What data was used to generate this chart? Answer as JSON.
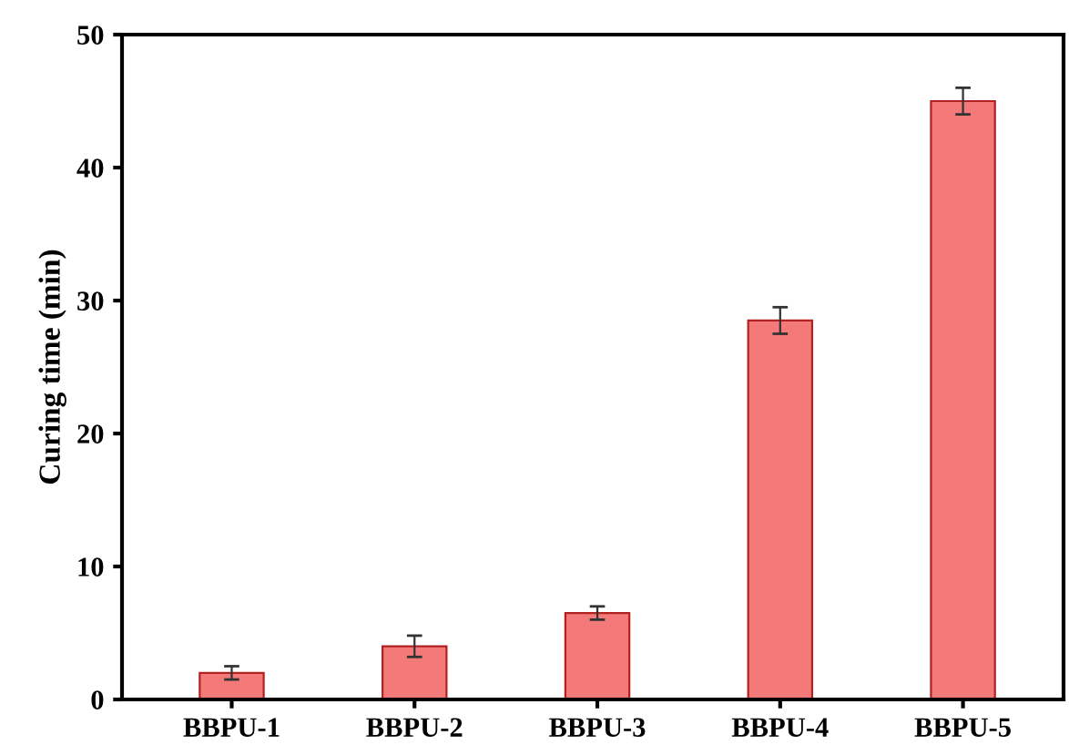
{
  "chart_data": {
    "type": "bar",
    "ylabel": "Curing time (min)",
    "categories": [
      "BBPU-1",
      "BBPU-2",
      "BBPU-3",
      "BBPU-4",
      "BBPU-5"
    ],
    "values": [
      2,
      4,
      6.5,
      28.5,
      45
    ],
    "errors": [
      0.5,
      0.8,
      0.5,
      1,
      1
    ],
    "color": "#f47a7a",
    "ylim": [
      0,
      50
    ],
    "yticks": [
      0,
      10,
      20,
      30,
      40,
      50
    ],
    "grid": false
  }
}
